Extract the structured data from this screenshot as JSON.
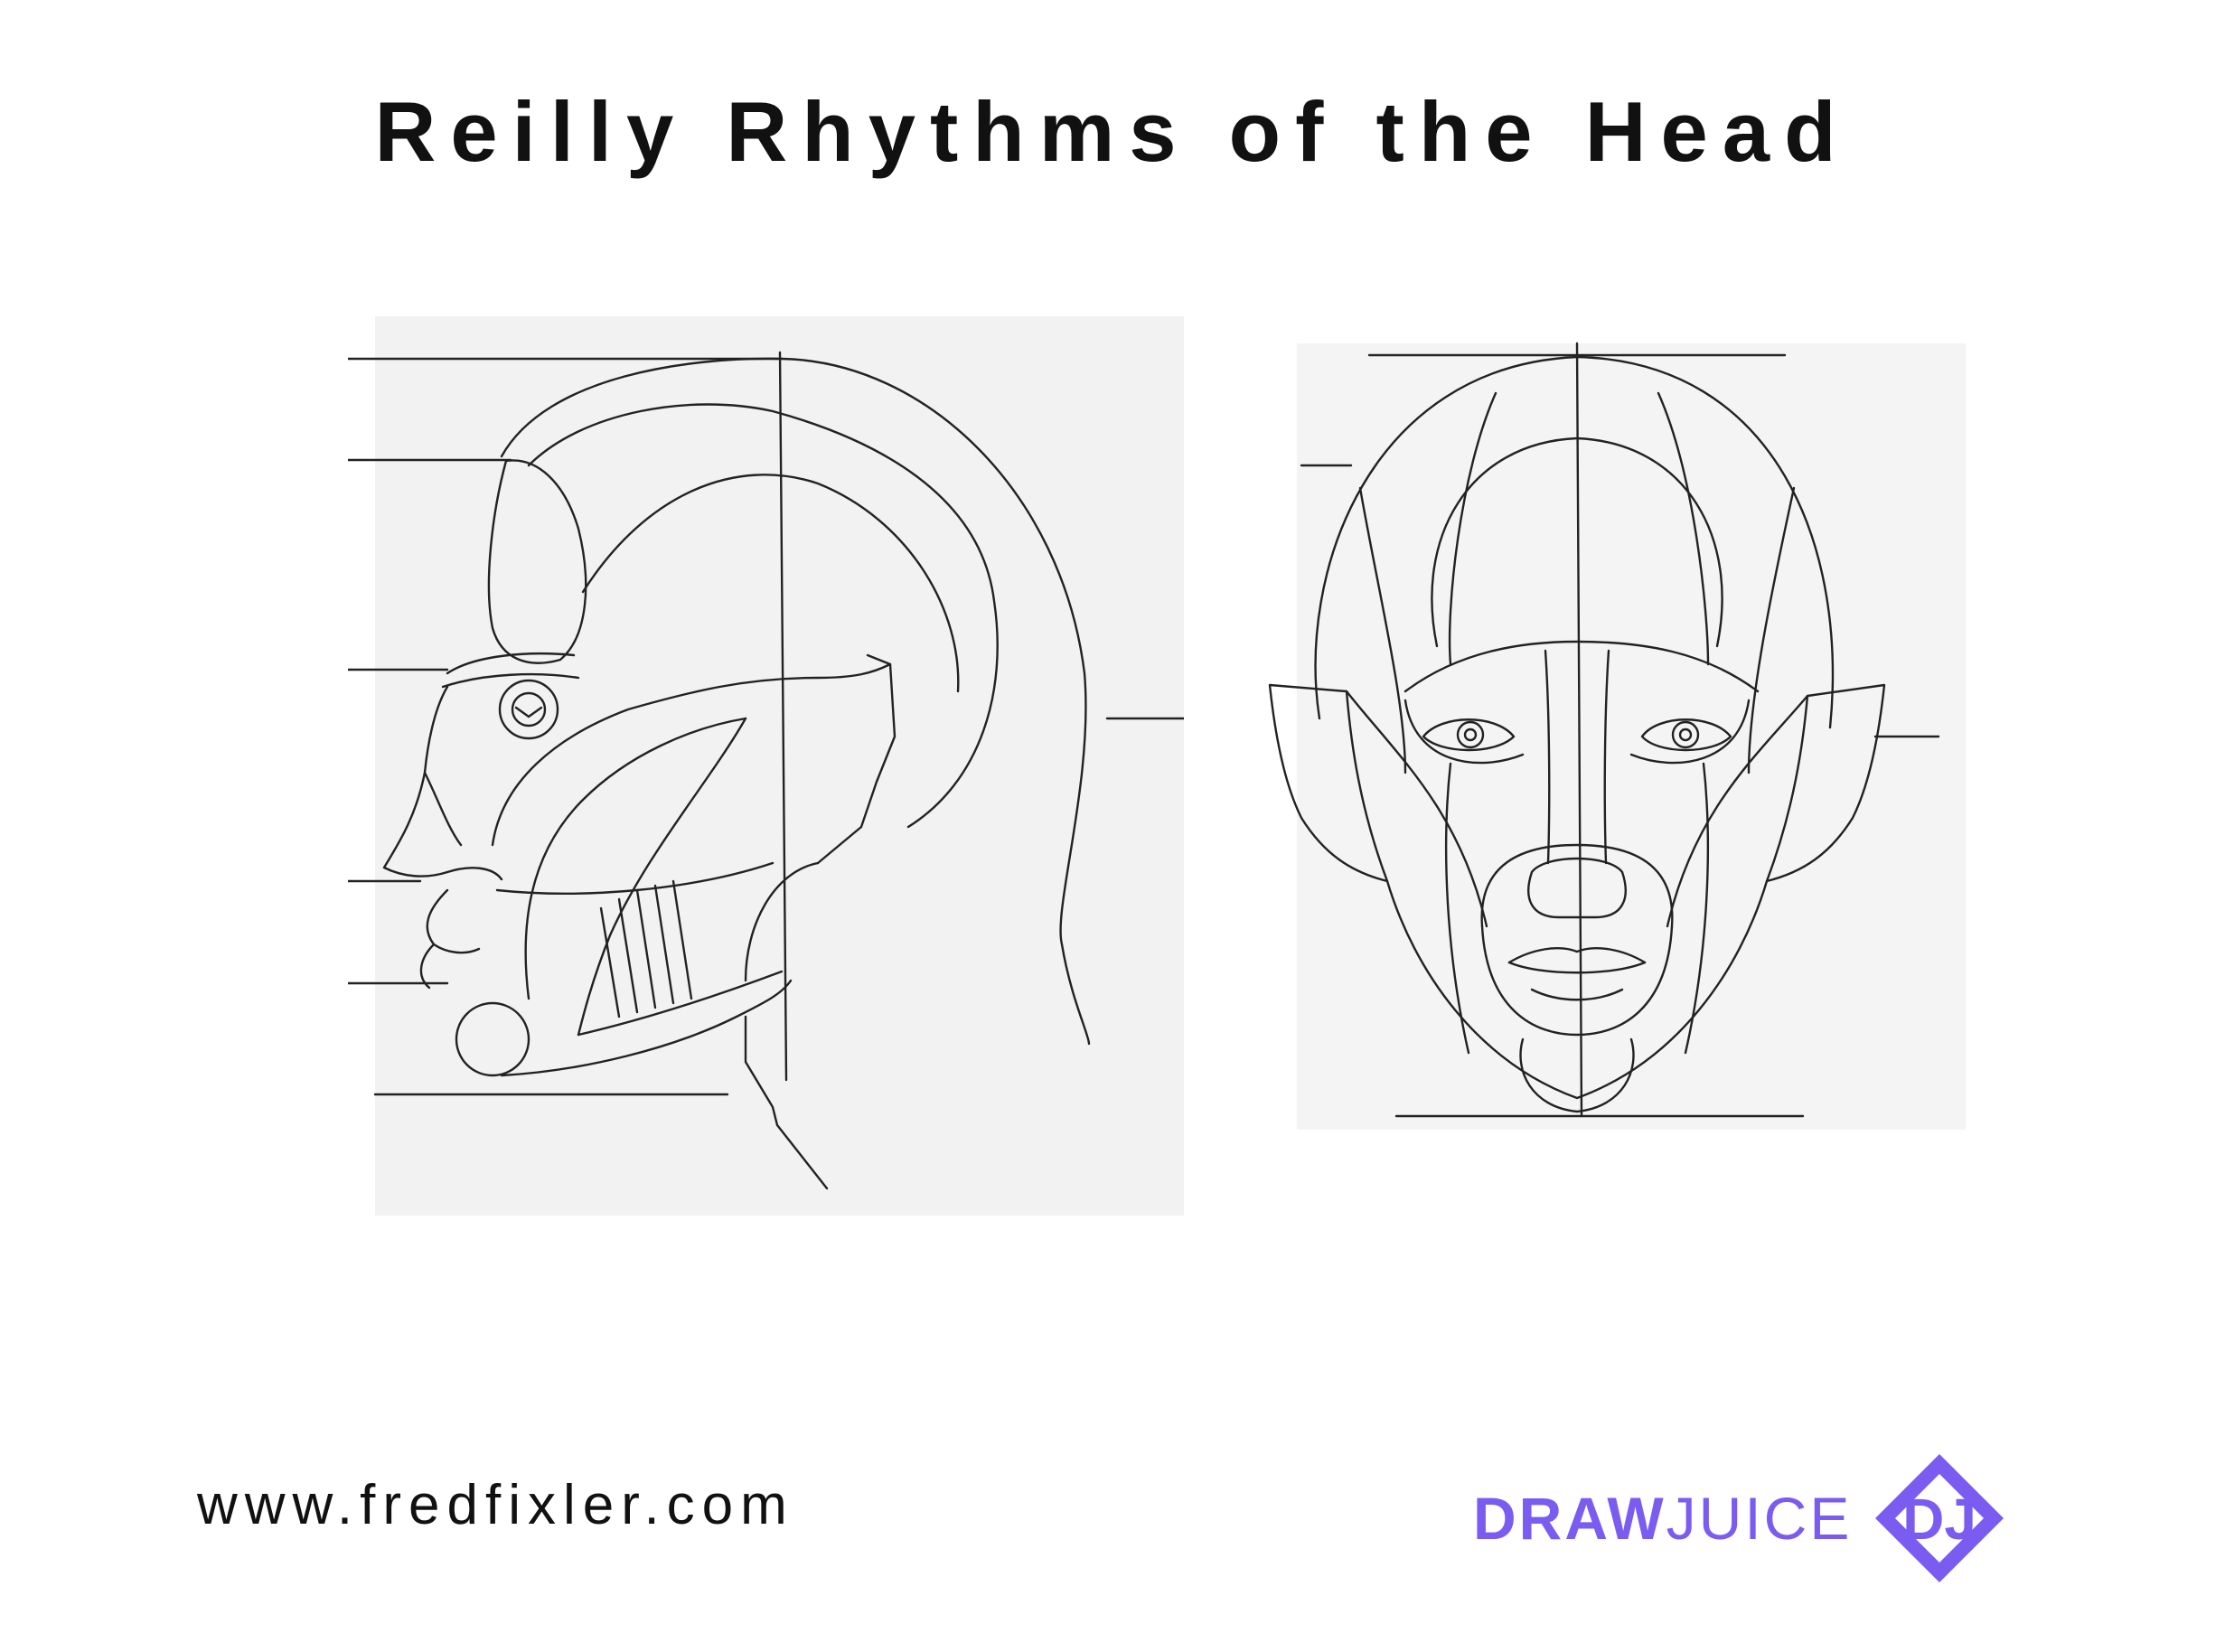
{
  "title": "Reilly Rhythms of the Head",
  "footer": {
    "website": "www.fredfixler.com",
    "brand_draw": "DRAW",
    "brand_juice": "JUICE",
    "logo_letters": "DJ",
    "brand_color": "#7b5cf0"
  },
  "images": {
    "profile": "head-profile-sketch",
    "front": "head-front-sketch"
  }
}
